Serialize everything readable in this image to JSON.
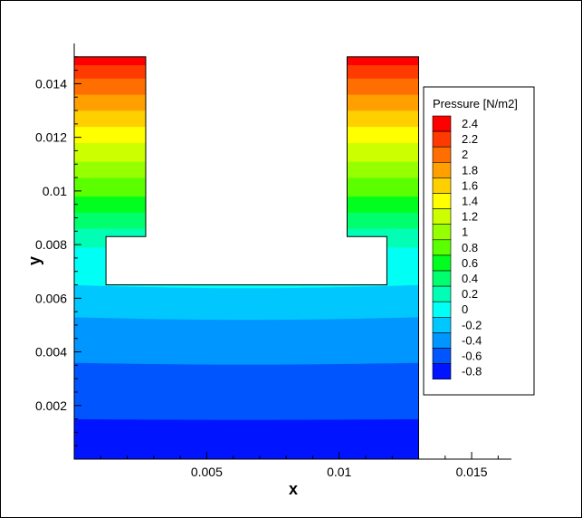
{
  "chart_data": {
    "type": "heatmap",
    "title": "",
    "xlabel": "x",
    "ylabel": "y",
    "xlim": [
      0,
      0.0165
    ],
    "ylim": [
      0,
      0.0155
    ],
    "x_ticks": [
      0.005,
      0.01,
      0.015
    ],
    "x_tick_labels": [
      "0.005",
      "0.01",
      "0.015"
    ],
    "y_ticks": [
      0.002,
      0.004,
      0.006,
      0.008,
      0.01,
      0.012,
      0.014
    ],
    "y_tick_labels": [
      "0.002",
      "0.004",
      "0.006",
      "0.008",
      "0.01",
      "0.012",
      "0.014"
    ],
    "domain": {
      "outline": [
        [
          0,
          0
        ],
        [
          0.013,
          0
        ],
        [
          0.013,
          0.015
        ],
        [
          0.0103,
          0.015
        ],
        [
          0.0103,
          0.0083
        ],
        [
          0.0118,
          0.0083
        ],
        [
          0.0118,
          0.0065
        ],
        [
          0.0012,
          0.0065
        ],
        [
          0.0012,
          0.0083
        ],
        [
          0.0027,
          0.0083
        ],
        [
          0.0027,
          0.015
        ],
        [
          0,
          0.015
        ]
      ]
    },
    "legend": {
      "title": "Pressure [N/m2]",
      "placement": "right",
      "levels": [
        "2.4",
        "2.2",
        "2",
        "1.8",
        "1.6",
        "1.4",
        "1.2",
        "1",
        "0.8",
        "0.6",
        "0.4",
        "0.2",
        "0",
        "-0.2",
        "-0.4",
        "-0.6",
        "-0.8"
      ],
      "colors": [
        "#ff0000",
        "#ff3a00",
        "#ff6e00",
        "#ff9f00",
        "#ffd000",
        "#ffff00",
        "#ccff00",
        "#96ff00",
        "#5cff00",
        "#00ff1e",
        "#00ff6e",
        "#00ffb4",
        "#00fff5",
        "#00c8ff",
        "#0096ff",
        "#0055ff",
        "#0014ff"
      ]
    },
    "contour_bands": [
      {
        "level": "-0.8",
        "color": "#0014ff",
        "y_range": [
          0,
          0.0015
        ]
      },
      {
        "level": "-0.6",
        "color": "#0055ff",
        "y_range": [
          0.0015,
          0.0036
        ]
      },
      {
        "level": "-0.4",
        "color": "#0096ff",
        "y_range": [
          0.0036,
          0.0053
        ]
      },
      {
        "level": "-0.2",
        "color": "#00c8ff",
        "y_range": [
          0.0053,
          0.0065
        ]
      },
      {
        "level": "0",
        "color": "#00fff5",
        "y_range": [
          0.0065,
          0.0079
        ]
      },
      {
        "level": "0.2",
        "color": "#00ffb4",
        "y_range": [
          0.0079,
          0.0086
        ]
      },
      {
        "level": "0.4",
        "color": "#00ff6e",
        "y_range": [
          0.0086,
          0.0092
        ]
      },
      {
        "level": "0.6",
        "color": "#00ff1e",
        "y_range": [
          0.0092,
          0.0098
        ]
      },
      {
        "level": "0.8",
        "color": "#5cff00",
        "y_range": [
          0.0098,
          0.0105
        ]
      },
      {
        "level": "1",
        "color": "#96ff00",
        "y_range": [
          0.0105,
          0.0111
        ]
      },
      {
        "level": "1.2",
        "color": "#ccff00",
        "y_range": [
          0.0111,
          0.0118
        ]
      },
      {
        "level": "1.4",
        "color": "#ffff00",
        "y_range": [
          0.0118,
          0.0124
        ]
      },
      {
        "level": "1.6",
        "color": "#ffd000",
        "y_range": [
          0.0124,
          0.013
        ]
      },
      {
        "level": "1.8",
        "color": "#ff9f00",
        "y_range": [
          0.013,
          0.0136
        ]
      },
      {
        "level": "2",
        "color": "#ff6e00",
        "y_range": [
          0.0136,
          0.0142
        ]
      },
      {
        "level": "2.2",
        "color": "#ff3a00",
        "y_range": [
          0.0142,
          0.0147
        ]
      },
      {
        "level": "2.4",
        "color": "#ff0000",
        "y_range": [
          0.0147,
          0.015
        ]
      }
    ],
    "grid": false
  }
}
